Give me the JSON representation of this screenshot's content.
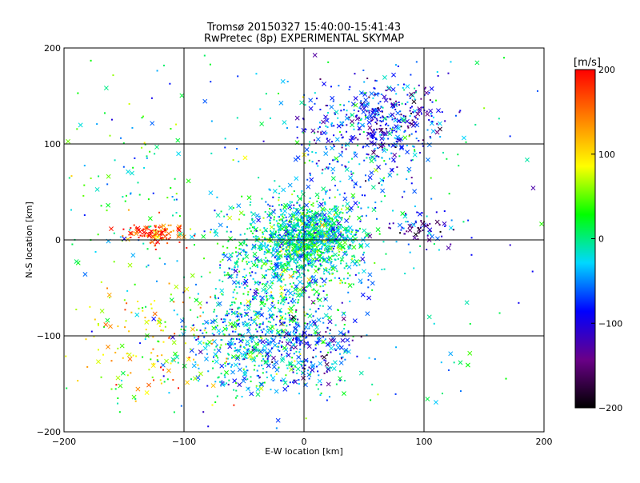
{
  "chart_data": {
    "type": "scatter",
    "title": "Tromsø 20150327 15:40:00-15:41:43",
    "subtitle": "RwPretec (8p) EXPERIMENTAL SKYMAP",
    "xlabel": "E-W location [km]",
    "ylabel": "N-S location [km]",
    "xlim": [
      -200,
      200
    ],
    "ylim": [
      -200,
      200
    ],
    "xticks": [
      "−200",
      "−100",
      "0",
      "100",
      "200"
    ],
    "yticks": [
      "−200",
      "−100",
      "0",
      "100",
      "200"
    ],
    "xtick_values": [
      -200,
      -100,
      0,
      100,
      200
    ],
    "ytick_values": [
      -200,
      -100,
      0,
      100,
      200
    ],
    "grid": true,
    "legend": "none",
    "colorbar": {
      "label": "[m/s]",
      "range": [
        -200,
        200
      ],
      "ticks": [
        "200",
        "100",
        "0",
        "−100",
        "−200"
      ],
      "tick_values": [
        200,
        100,
        0,
        -100,
        -200
      ],
      "colormap": [
        "#000000",
        "#6a0088",
        "#0000ff",
        "#00d8ff",
        "#00ff00",
        "#ffff00",
        "#ff8000",
        "#ff0000"
      ]
    },
    "markers": [
      "dot",
      "x"
    ],
    "clusters": [
      {
        "x": 5,
        "y": 5,
        "sx": 22,
        "sy": 18,
        "n": 900,
        "v": -15
      },
      {
        "x": -15,
        "y": -10,
        "sx": 30,
        "sy": 25,
        "n": 450,
        "v": -5
      },
      {
        "x": -40,
        "y": -110,
        "sx": 30,
        "sy": 25,
        "n": 500,
        "v": -30
      },
      {
        "x": -20,
        "y": -60,
        "sx": 30,
        "sy": 30,
        "n": 300,
        "v": -20
      },
      {
        "x": 55,
        "y": 110,
        "sx": 28,
        "sy": 30,
        "n": 420,
        "v": -70
      },
      {
        "x": 80,
        "y": 130,
        "sx": 20,
        "sy": 15,
        "n": 120,
        "v": -100
      },
      {
        "x": -125,
        "y": 7,
        "sx": 12,
        "sy": 6,
        "n": 110,
        "v": 175
      },
      {
        "x": -130,
        "y": -110,
        "sx": 30,
        "sy": 30,
        "n": 140,
        "v": 90
      },
      {
        "x": -150,
        "y": 60,
        "sx": 30,
        "sy": 60,
        "n": 90,
        "v": 10
      },
      {
        "x": 0,
        "y": 0,
        "sx": 110,
        "sy": 110,
        "n": 320,
        "v": -20
      },
      {
        "x": 95,
        "y": 10,
        "sx": 15,
        "sy": 8,
        "n": 60,
        "v": -120
      },
      {
        "x": 10,
        "y": -110,
        "sx": 20,
        "sy": 20,
        "n": 150,
        "v": -90
      }
    ]
  }
}
